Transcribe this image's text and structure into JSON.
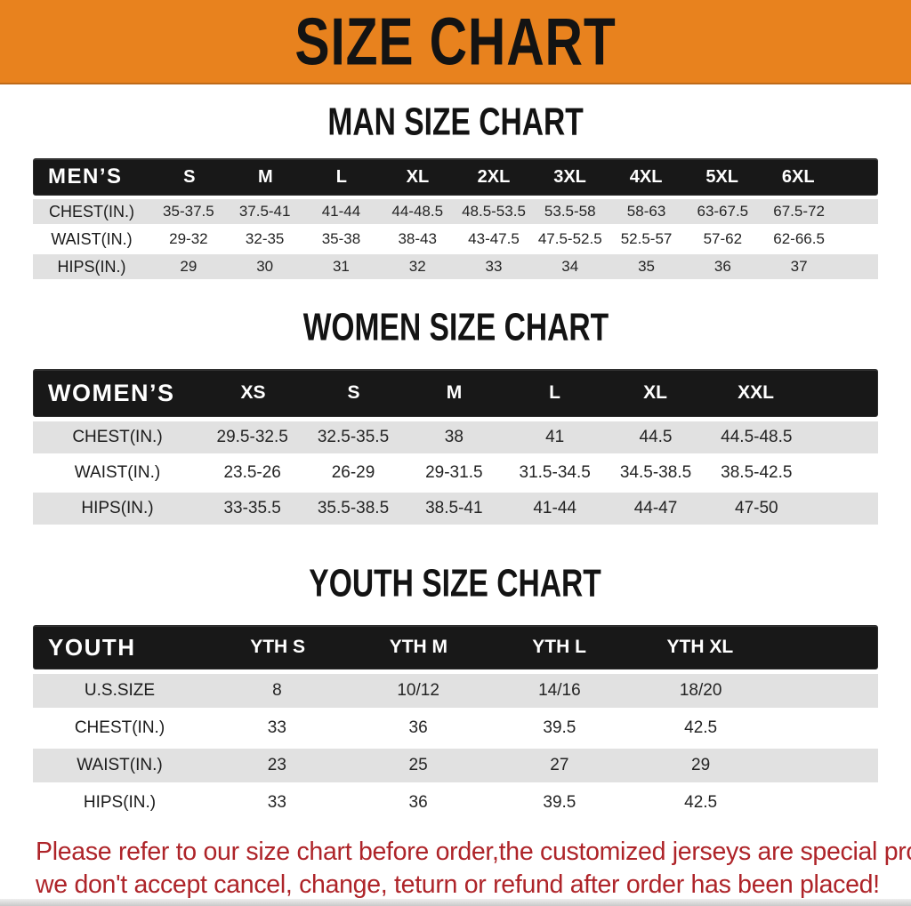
{
  "theme": {
    "banner_bg": "#E8821E",
    "banner_text": "#131313",
    "header_bg": "#181818",
    "header_text": "#FFFFFF",
    "row_shade": "#E1E1E1",
    "row_plain": "#FFFFFF",
    "table_text": "#242424",
    "accent_red": "#AE2429"
  },
  "banner": {
    "title": "SIZE CHART"
  },
  "sections": [
    {
      "heading": "MAN SIZE CHART",
      "table": {
        "title": "MEN’S",
        "columns": [
          "S",
          "M",
          "L",
          "XL",
          "2XL",
          "3XL",
          "4XL",
          "5XL",
          "6XL"
        ],
        "rows": [
          {
            "label": "CHEST(IN.)",
            "values": [
              "35-37.5",
              "37.5-41",
              "41-44",
              "44-48.5",
              "48.5-53.5",
              "53.5-58",
              "58-63",
              "63-67.5",
              "67.5-72"
            ]
          },
          {
            "label": "WAIST(IN.)",
            "values": [
              "29-32",
              "32-35",
              "35-38",
              "38-43",
              "43-47.5",
              "47.5-52.5",
              "52.5-57",
              "57-62",
              "62-66.5"
            ]
          },
          {
            "label": "HIPS(IN.)",
            "values": [
              "29",
              "30",
              "31",
              "32",
              "33",
              "34",
              "35",
              "36",
              "37"
            ]
          }
        ]
      }
    },
    {
      "heading": "WOMEN SIZE CHART",
      "table": {
        "title": "WOMEN’S",
        "columns": [
          "XS",
          "S",
          "M",
          "L",
          "XL",
          "XXL"
        ],
        "rows": [
          {
            "label": "CHEST(IN.)",
            "values": [
              "29.5-32.5",
              "32.5-35.5",
              "38",
              "41",
              "44.5",
              "44.5-48.5"
            ]
          },
          {
            "label": "WAIST(IN.)",
            "values": [
              "23.5-26",
              "26-29",
              "29-31.5",
              "31.5-34.5",
              "34.5-38.5",
              "38.5-42.5"
            ]
          },
          {
            "label": "HIPS(IN.)",
            "values": [
              "33-35.5",
              "35.5-38.5",
              "38.5-41",
              "41-44",
              "44-47",
              "47-50"
            ]
          }
        ]
      }
    },
    {
      "heading": "YOUTH SIZE CHART",
      "table": {
        "title": "YOUTH",
        "columns": [
          "YTH S",
          "YTH M",
          "YTH L",
          "YTH XL"
        ],
        "rows": [
          {
            "label": "U.S.SIZE",
            "values": [
              "8",
              "10/12",
              "14/16",
              "18/20"
            ]
          },
          {
            "label": "CHEST(IN.)",
            "values": [
              "33",
              "36",
              "39.5",
              "42.5"
            ]
          },
          {
            "label": "WAIST(IN.)",
            "values": [
              "23",
              "25",
              "27",
              "29"
            ]
          },
          {
            "label": "HIPS(IN.)",
            "values": [
              "33",
              "36",
              "39.5",
              "42.5"
            ]
          }
        ]
      }
    }
  ],
  "footer": {
    "lines": [
      "Please refer to our size chart before order,the customized jerseys are special products,",
      "we don't accept cancel, change, teturn or refund after order has been placed!"
    ]
  }
}
